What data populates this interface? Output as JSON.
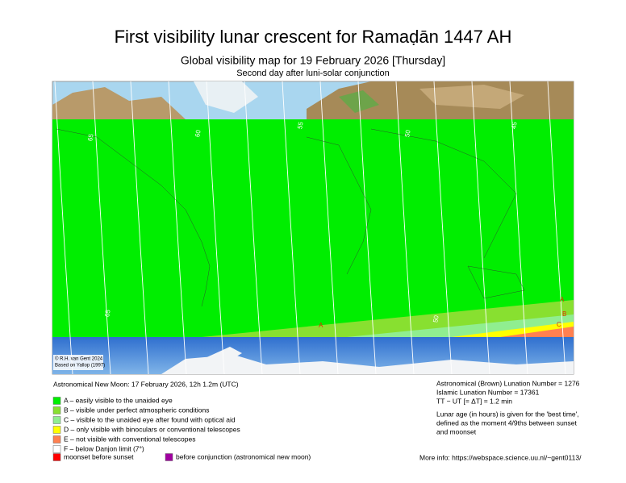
{
  "header": {
    "title": "First visibility lunar crescent for Ramaḍān 1447 AH",
    "subtitle": "Global visibility map for 19 February 2026 [Thursday]",
    "note": "Second day after luni-solar conjunction"
  },
  "map": {
    "contour_labels": [
      "65",
      "60",
      "55",
      "50",
      "45",
      "65",
      "50"
    ],
    "zone_labels": [
      "A",
      "A",
      "B",
      "C"
    ],
    "credit": [
      "© R.H. van Gent 2024",
      "Based on Yallop (1997)"
    ]
  },
  "new_moon": "Astronomical New Moon: 17 February 2026, 12h 1.2m (UTC)",
  "legend": [
    {
      "label": "A – easily visible to the unaided eye",
      "color": "#00ee00"
    },
    {
      "label": "B – visible under perfect atmospheric conditions",
      "color": "#88e030"
    },
    {
      "label": "C – visible to the unaided eye after found with optical aid",
      "color": "#90ee90"
    },
    {
      "label": "D – only visible with binoculars or conventional telescopes",
      "color": "#ffff00"
    },
    {
      "label": "E – not visible with conventional telescopes",
      "color": "#ff8050"
    },
    {
      "label": "F – below Danjon limit (7°)",
      "color": "#ffffff"
    }
  ],
  "extra_legend": [
    {
      "label": "moonset before sunset",
      "color": "#ff0000"
    },
    {
      "label": "before conjunction (astronomical new moon)",
      "color": "#a000a0"
    }
  ],
  "info": [
    "Astronomical (Brown) Lunation Number = 1276",
    "Islamic Lunation Number = 17361",
    "TT − UT [= ΔT] = 1.2 min"
  ],
  "notes": [
    "Lunar age (in hours) is given for the 'best time',",
    "defined as the moment 4/9ths between sunset",
    "and moonset"
  ],
  "more_info": "More info: https://webspace.science.uu.nl/~gent0113/"
}
